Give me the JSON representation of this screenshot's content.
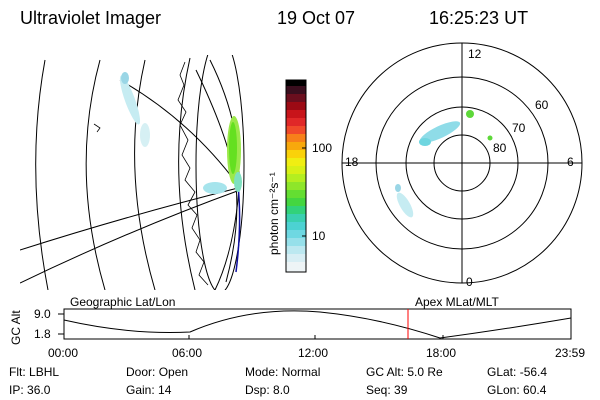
{
  "header": {
    "title": "Ultraviolet Imager",
    "date": "19 Oct 07",
    "time": "16:25:23 UT"
  },
  "colorbar": {
    "label": "photon cm⁻²s⁻¹",
    "ticks": [
      "100",
      "10"
    ]
  },
  "polar": {
    "mlt_labels": {
      "top": "12",
      "left": "18",
      "right": "6",
      "bottom": "0"
    },
    "lat_labels": [
      "60",
      "70",
      "80"
    ]
  },
  "timeline": {
    "ylabel": "GC Alt",
    "yticks": [
      "9.0",
      "1.8"
    ],
    "left_label": "Geographic Lat/Lon",
    "right_label": "Apex MLat/MLT",
    "xticks": [
      "00:00",
      "06:00",
      "12:00",
      "18:00",
      "23:59"
    ],
    "marker_color": "#ff0000"
  },
  "status": {
    "row1": [
      {
        "label": "Flt:",
        "value": "LBHL"
      },
      {
        "label": "Door:",
        "value": "Open"
      },
      {
        "label": "Mode:",
        "value": "Normal"
      },
      {
        "label": "GC Alt:",
        "value": "5.0 Re"
      },
      {
        "label": "GLat:",
        "value": "-56.4"
      }
    ],
    "row2": [
      {
        "label": "IP:",
        "value": "36.0"
      },
      {
        "label": "Gain:",
        "value": "14"
      },
      {
        "label": "Dsp:",
        "value": "8.0"
      },
      {
        "label": "Seq:",
        "value": "39"
      },
      {
        "label": "GLon:",
        "value": "60.4"
      }
    ]
  },
  "colors": {
    "aurora_green": "#7ae83a",
    "aurora_cyan": "#6fd6e0",
    "marker_red": "#ff0000",
    "terminator_blue": "#1010a0"
  }
}
